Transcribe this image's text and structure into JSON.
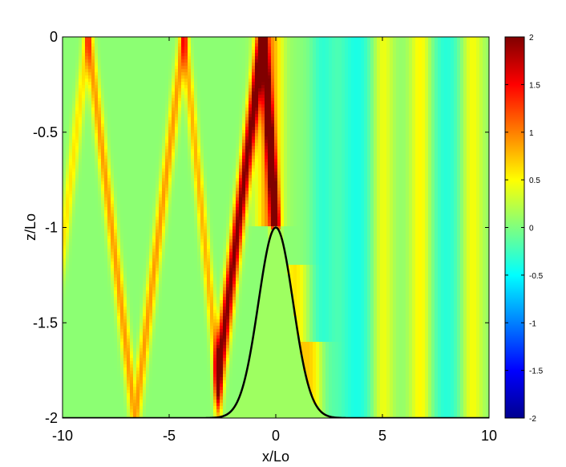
{
  "chart_data": {
    "type": "heatmap",
    "title": "",
    "xlabel": "x/Lo",
    "ylabel": "z/Lo",
    "xlim": [
      -10,
      10
    ],
    "ylim": [
      -2,
      0
    ],
    "xticks": [
      -10,
      -5,
      0,
      5,
      10
    ],
    "yticks": [
      -2,
      -1.5,
      -1,
      -0.5,
      0
    ],
    "xtick_labels": [
      "-10",
      "-5",
      "0",
      "5",
      "10"
    ],
    "ytick_labels": [
      "-2",
      "-1.5",
      "-1",
      "-0.5",
      "0"
    ],
    "colormap": "jet",
    "color_range": [
      -2,
      2
    ],
    "colorbar_ticks": [
      -2,
      -1.5,
      -1,
      -0.5,
      0,
      0.5,
      1,
      1.5,
      2
    ],
    "colorbar_tick_labels": [
      "-2",
      "-1.5",
      "-1",
      "-0.5",
      "0",
      "0.5",
      "1",
      "1.5",
      "2"
    ],
    "grid": false,
    "colorbar_position": "right",
    "background_value": 0.05,
    "topography": {
      "type": "gaussian",
      "center_x": 0,
      "base_z": -2,
      "peak_z": -1,
      "sigma": 1.15,
      "fill_value": 0.12,
      "line_color": "#000000"
    },
    "beams": [
      {
        "segments": [
          [
            -0.6,
            0,
            -2.7,
            -1.78
          ],
          [
            -0.6,
            0,
            0.0,
            -1.0
          ]
        ],
        "amplitude": 2.0,
        "width": 0.18
      },
      {
        "segments": [
          [
            -8.8,
            0,
            -6.6,
            -2
          ],
          [
            -4.3,
            0,
            -6.6,
            -2
          ]
        ],
        "amplitude": 0.85,
        "width": 0.16
      },
      {
        "segments": [
          [
            -4.3,
            0,
            -2.7,
            -1.78
          ]
        ],
        "amplitude": 0.75,
        "width": 0.16
      },
      {
        "segments": [
          [
            -8.8,
            0,
            -10.0,
            -1.1
          ]
        ],
        "amplitude": 0.55,
        "width": 0.16
      }
    ],
    "bands": [
      {
        "x": -0.3,
        "amplitude": 0.9,
        "width": 0.6,
        "z_range": [
          -1.0,
          0
        ]
      },
      {
        "x": 0.9,
        "amplitude": 0.55,
        "width": 0.6,
        "z_range": [
          -2,
          -1.2
        ]
      },
      {
        "x": 1.8,
        "amplitude": 0.7,
        "width": 0.6,
        "z_range": [
          -2,
          -1.6
        ]
      },
      {
        "x": 2.2,
        "amplitude": -0.35,
        "width": 0.6,
        "z_range": [
          -2,
          0
        ]
      },
      {
        "x": 3.8,
        "amplitude": -0.45,
        "width": 0.9,
        "z_range": [
          -2,
          0
        ]
      },
      {
        "x": 5.0,
        "amplitude": 0.45,
        "width": 0.5,
        "z_range": [
          -2,
          0
        ]
      },
      {
        "x": 6.8,
        "amplitude": 0.5,
        "width": 0.5,
        "z_range": [
          -2,
          0
        ]
      },
      {
        "x": 8.0,
        "amplitude": -0.4,
        "width": 0.8,
        "z_range": [
          -2,
          0
        ]
      },
      {
        "x": 9.2,
        "amplitude": 0.45,
        "width": 0.5,
        "z_range": [
          -2,
          0
        ]
      }
    ]
  }
}
